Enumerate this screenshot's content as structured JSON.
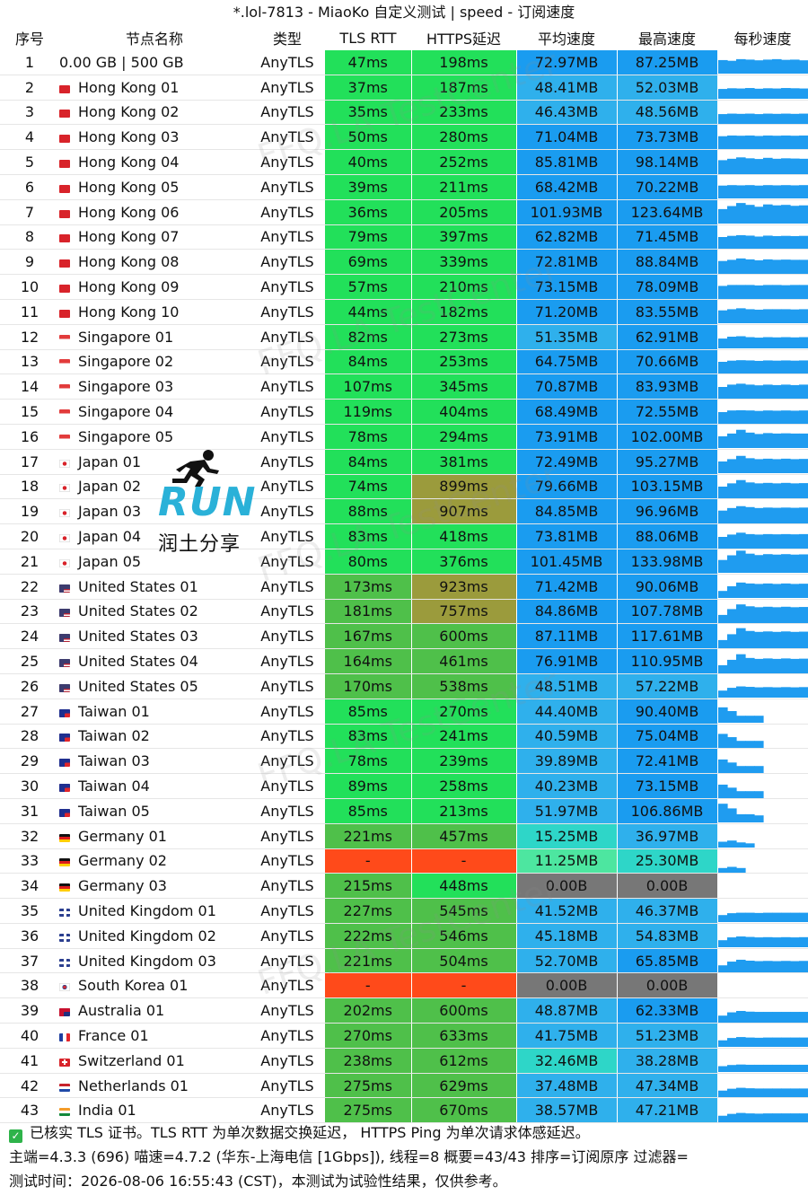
{
  "window": {
    "title": "*.lol-7813 - MiaoKo 自定义测试 | speed - 订阅速度"
  },
  "columns": [
    "序号",
    "节点名称",
    "类型",
    "TLS RTT",
    "HTTPS延迟",
    "平均速度",
    "最高速度",
    "每秒速度"
  ],
  "colors": {
    "green_bright": "#22e05a",
    "green_mid": "#4fc04a",
    "olive_warn": "#9b9b3c",
    "red_fail": "#ff4a1a",
    "blue_strong": "#1a9cf0",
    "blue_light": "#2fb0ec",
    "teal": "#2ed6c8",
    "green_light": "#4de6a0",
    "gray_zero": "#777777",
    "spark_fill": "#1f9cf0"
  },
  "rows": [
    {
      "index": "1",
      "flag": "none",
      "name": "0.00 GB | 500 GB",
      "type": "AnyTLS",
      "rtt": "47ms",
      "https": "198ms",
      "avg": "72.97MB",
      "max": "87.25MB",
      "spark": [
        0.58,
        0.55,
        0.62,
        0.6,
        0.57,
        0.6,
        0.62,
        0.59,
        0.6,
        0.57
      ]
    },
    {
      "index": "2",
      "flag": "hk",
      "name": "Hong Kong 01",
      "type": "AnyTLS",
      "rtt": "37ms",
      "https": "187ms",
      "avg": "48.41MB",
      "max": "52.03MB",
      "spark": [
        0.42,
        0.45,
        0.44,
        0.46,
        0.43,
        0.45,
        0.44,
        0.46,
        0.45,
        0.44
      ]
    },
    {
      "index": "3",
      "flag": "hk",
      "name": "Hong Kong 02",
      "type": "AnyTLS",
      "rtt": "35ms",
      "https": "233ms",
      "avg": "46.43MB",
      "max": "48.56MB",
      "spark": [
        0.42,
        0.44,
        0.43,
        0.44,
        0.42,
        0.44,
        0.43,
        0.44,
        0.43,
        0.44
      ]
    },
    {
      "index": "4",
      "flag": "hk",
      "name": "Hong Kong 03",
      "type": "AnyTLS",
      "rtt": "50ms",
      "https": "280ms",
      "avg": "71.04MB",
      "max": "73.73MB",
      "spark": [
        0.55,
        0.58,
        0.57,
        0.58,
        0.56,
        0.58,
        0.57,
        0.58,
        0.57,
        0.58
      ]
    },
    {
      "index": "5",
      "flag": "hk",
      "name": "Hong Kong 04",
      "type": "AnyTLS",
      "rtt": "40ms",
      "https": "252ms",
      "avg": "85.81MB",
      "max": "98.14MB",
      "spark": [
        0.6,
        0.66,
        0.72,
        0.68,
        0.65,
        0.7,
        0.66,
        0.68,
        0.67,
        0.66
      ]
    },
    {
      "index": "6",
      "flag": "hk",
      "name": "Hong Kong 05",
      "type": "AnyTLS",
      "rtt": "39ms",
      "https": "211ms",
      "avg": "68.42MB",
      "max": "70.22MB",
      "spark": [
        0.55,
        0.57,
        0.56,
        0.57,
        0.55,
        0.57,
        0.56,
        0.57,
        0.56,
        0.57
      ]
    },
    {
      "index": "7",
      "flag": "hk",
      "name": "Hong Kong 06",
      "type": "AnyTLS",
      "rtt": "36ms",
      "https": "205ms",
      "avg": "101.93MB",
      "max": "123.64MB",
      "spark": [
        0.62,
        0.75,
        0.88,
        0.8,
        0.72,
        0.82,
        0.78,
        0.8,
        0.76,
        0.78
      ]
    },
    {
      "index": "8",
      "flag": "hk",
      "name": "Hong Kong 07",
      "type": "AnyTLS",
      "rtt": "79ms",
      "https": "397ms",
      "avg": "62.82MB",
      "max": "71.45MB",
      "spark": [
        0.5,
        0.55,
        0.58,
        0.56,
        0.52,
        0.56,
        0.54,
        0.55,
        0.54,
        0.55
      ]
    },
    {
      "index": "9",
      "flag": "hk",
      "name": "Hong Kong 08",
      "type": "AnyTLS",
      "rtt": "69ms",
      "https": "339ms",
      "avg": "72.81MB",
      "max": "88.84MB",
      "spark": [
        0.55,
        0.6,
        0.66,
        0.62,
        0.58,
        0.62,
        0.6,
        0.61,
        0.6,
        0.6
      ]
    },
    {
      "index": "10",
      "flag": "hk",
      "name": "Hong Kong 09",
      "type": "AnyTLS",
      "rtt": "57ms",
      "https": "210ms",
      "avg": "73.15MB",
      "max": "78.09MB",
      "spark": [
        0.56,
        0.6,
        0.6,
        0.6,
        0.58,
        0.6,
        0.6,
        0.59,
        0.6,
        0.6
      ]
    },
    {
      "index": "11",
      "flag": "hk",
      "name": "Hong Kong 10",
      "type": "AnyTLS",
      "rtt": "44ms",
      "https": "182ms",
      "avg": "71.20MB",
      "max": "83.55MB",
      "spark": [
        0.55,
        0.6,
        0.64,
        0.6,
        0.58,
        0.6,
        0.6,
        0.6,
        0.59,
        0.6
      ]
    },
    {
      "index": "12",
      "flag": "sg",
      "name": "Singapore 01",
      "type": "AnyTLS",
      "rtt": "82ms",
      "https": "273ms",
      "avg": "51.35MB",
      "max": "62.91MB",
      "spark": [
        0.42,
        0.5,
        0.52,
        0.48,
        0.46,
        0.48,
        0.47,
        0.48,
        0.47,
        0.48
      ]
    },
    {
      "index": "13",
      "flag": "sg",
      "name": "Singapore 02",
      "type": "AnyTLS",
      "rtt": "84ms",
      "https": "253ms",
      "avg": "64.75MB",
      "max": "70.66MB",
      "spark": [
        0.5,
        0.55,
        0.57,
        0.56,
        0.54,
        0.56,
        0.55,
        0.56,
        0.55,
        0.56
      ]
    },
    {
      "index": "14",
      "flag": "sg",
      "name": "Singapore 03",
      "type": "AnyTLS",
      "rtt": "107ms",
      "https": "345ms",
      "avg": "70.87MB",
      "max": "83.93MB",
      "spark": [
        0.5,
        0.6,
        0.64,
        0.6,
        0.57,
        0.6,
        0.58,
        0.6,
        0.58,
        0.6
      ]
    },
    {
      "index": "15",
      "flag": "sg",
      "name": "Singapore 04",
      "type": "AnyTLS",
      "rtt": "119ms",
      "https": "404ms",
      "avg": "68.49MB",
      "max": "72.55MB",
      "spark": [
        0.5,
        0.57,
        0.58,
        0.57,
        0.55,
        0.57,
        0.56,
        0.57,
        0.56,
        0.57
      ]
    },
    {
      "index": "16",
      "flag": "sg",
      "name": "Singapore 05",
      "type": "AnyTLS",
      "rtt": "78ms",
      "https": "294ms",
      "avg": "73.91MB",
      "max": "102.00MB",
      "spark": [
        0.5,
        0.62,
        0.78,
        0.66,
        0.6,
        0.64,
        0.62,
        0.63,
        0.62,
        0.62
      ]
    },
    {
      "index": "17",
      "flag": "jp",
      "name": "Japan 01",
      "type": "AnyTLS",
      "rtt": "84ms",
      "https": "381ms",
      "avg": "72.49MB",
      "max": "95.27MB",
      "spark": [
        0.5,
        0.6,
        0.74,
        0.64,
        0.6,
        0.62,
        0.6,
        0.62,
        0.6,
        0.61
      ]
    },
    {
      "index": "18",
      "flag": "jp",
      "name": "Japan 02",
      "type": "AnyTLS",
      "rtt": "74ms",
      "https": "899ms",
      "avg": "79.66MB",
      "max": "103.15MB",
      "spark": [
        0.5,
        0.64,
        0.78,
        0.68,
        0.64,
        0.66,
        0.64,
        0.66,
        0.64,
        0.65
      ]
    },
    {
      "index": "19",
      "flag": "jp",
      "name": "Japan 03",
      "type": "AnyTLS",
      "rtt": "88ms",
      "https": "907ms",
      "avg": "84.85MB",
      "max": "96.96MB",
      "spark": [
        0.55,
        0.66,
        0.74,
        0.7,
        0.66,
        0.68,
        0.67,
        0.68,
        0.67,
        0.68
      ]
    },
    {
      "index": "20",
      "flag": "jp",
      "name": "Japan 04",
      "type": "AnyTLS",
      "rtt": "83ms",
      "https": "418ms",
      "avg": "73.81MB",
      "max": "88.06MB",
      "spark": [
        0.5,
        0.6,
        0.68,
        0.62,
        0.6,
        0.62,
        0.61,
        0.62,
        0.61,
        0.62
      ]
    },
    {
      "index": "21",
      "flag": "jp",
      "name": "Japan 05",
      "type": "AnyTLS",
      "rtt": "80ms",
      "https": "376ms",
      "avg": "101.45MB",
      "max": "133.98MB",
      "spark": [
        0.55,
        0.75,
        0.95,
        0.82,
        0.76,
        0.8,
        0.78,
        0.8,
        0.78,
        0.79
      ]
    },
    {
      "index": "22",
      "flag": "us",
      "name": "United States 01",
      "type": "AnyTLS",
      "rtt": "173ms",
      "https": "923ms",
      "avg": "71.42MB",
      "max": "90.06MB",
      "spark": [
        0.3,
        0.5,
        0.66,
        0.62,
        0.6,
        0.62,
        0.6,
        0.62,
        0.6,
        0.61
      ]
    },
    {
      "index": "23",
      "flag": "us",
      "name": "United States 02",
      "type": "AnyTLS",
      "rtt": "181ms",
      "https": "757ms",
      "avg": "84.86MB",
      "max": "107.78MB",
      "spark": [
        0.35,
        0.6,
        0.8,
        0.72,
        0.68,
        0.7,
        0.68,
        0.7,
        0.68,
        0.69
      ]
    },
    {
      "index": "24",
      "flag": "us",
      "name": "United States 03",
      "type": "AnyTLS",
      "rtt": "167ms",
      "https": "600ms",
      "avg": "87.11MB",
      "max": "117.61MB",
      "spark": [
        0.35,
        0.6,
        0.86,
        0.74,
        0.7,
        0.72,
        0.7,
        0.72,
        0.7,
        0.71
      ]
    },
    {
      "index": "25",
      "flag": "us",
      "name": "United States 04",
      "type": "AnyTLS",
      "rtt": "164ms",
      "https": "461ms",
      "avg": "76.91MB",
      "max": "110.95MB",
      "spark": [
        0.35,
        0.58,
        0.82,
        0.66,
        0.62,
        0.64,
        0.62,
        0.64,
        0.62,
        0.63
      ]
    },
    {
      "index": "26",
      "flag": "us",
      "name": "United States 05",
      "type": "AnyTLS",
      "rtt": "170ms",
      "https": "538ms",
      "avg": "48.51MB",
      "max": "57.22MB",
      "spark": [
        0.3,
        0.42,
        0.48,
        0.46,
        0.44,
        0.45,
        0.44,
        0.45,
        0.44,
        0.45
      ]
    },
    {
      "index": "27",
      "flag": "tw",
      "name": "Taiwan 01",
      "type": "AnyTLS",
      "rtt": "85ms",
      "https": "270ms",
      "avg": "44.40MB",
      "max": "90.40MB",
      "spark": [
        0.66,
        0.5,
        0.3,
        0.3,
        0.3,
        0.0,
        0.0,
        0.0,
        0.0,
        0.0
      ]
    },
    {
      "index": "28",
      "flag": "tw",
      "name": "Taiwan 02",
      "type": "AnyTLS",
      "rtt": "83ms",
      "https": "241ms",
      "avg": "40.59MB",
      "max": "75.04MB",
      "spark": [
        0.6,
        0.46,
        0.3,
        0.3,
        0.3,
        0.0,
        0.0,
        0.0,
        0.0,
        0.0
      ]
    },
    {
      "index": "29",
      "flag": "tw",
      "name": "Taiwan 03",
      "type": "AnyTLS",
      "rtt": "78ms",
      "https": "239ms",
      "avg": "39.89MB",
      "max": "72.41MB",
      "spark": [
        0.58,
        0.45,
        0.3,
        0.3,
        0.3,
        0.0,
        0.0,
        0.0,
        0.0,
        0.0
      ]
    },
    {
      "index": "30",
      "flag": "tw",
      "name": "Taiwan 04",
      "type": "AnyTLS",
      "rtt": "89ms",
      "https": "258ms",
      "avg": "40.23MB",
      "max": "73.15MB",
      "spark": [
        0.58,
        0.45,
        0.3,
        0.3,
        0.3,
        0.0,
        0.0,
        0.0,
        0.0,
        0.0
      ]
    },
    {
      "index": "31",
      "flag": "tw",
      "name": "Taiwan 05",
      "type": "AnyTLS",
      "rtt": "85ms",
      "https": "213ms",
      "avg": "51.97MB",
      "max": "106.86MB",
      "spark": [
        0.8,
        0.6,
        0.35,
        0.35,
        0.3,
        0.0,
        0.0,
        0.0,
        0.0,
        0.0
      ]
    },
    {
      "index": "32",
      "flag": "de",
      "name": "Germany 01",
      "type": "AnyTLS",
      "rtt": "221ms",
      "https": "457ms",
      "avg": "15.25MB",
      "max": "36.97MB",
      "spark": [
        0.25,
        0.3,
        0.22,
        0.18,
        0.0,
        0.0,
        0.0,
        0.0,
        0.0,
        0.0
      ]
    },
    {
      "index": "33",
      "flag": "de",
      "name": "Germany 02",
      "type": "AnyTLS",
      "rtt": "-",
      "https": "-",
      "avg": "11.25MB",
      "max": "25.30MB",
      "spark": [
        0.2,
        0.25,
        0.2,
        0.0,
        0.0,
        0.0,
        0.0,
        0.0,
        0.0,
        0.0
      ]
    },
    {
      "index": "34",
      "flag": "de",
      "name": "Germany 03",
      "type": "AnyTLS",
      "rtt": "215ms",
      "https": "448ms",
      "avg": "0.00B",
      "max": "0.00B",
      "spark": [
        0,
        0,
        0,
        0,
        0,
        0,
        0,
        0,
        0,
        0
      ]
    },
    {
      "index": "35",
      "flag": "gb",
      "name": "United Kingdom 01",
      "type": "AnyTLS",
      "rtt": "227ms",
      "https": "545ms",
      "avg": "41.52MB",
      "max": "46.37MB",
      "spark": [
        0.3,
        0.38,
        0.4,
        0.4,
        0.39,
        0.4,
        0.4,
        0.4,
        0.4,
        0.4
      ]
    },
    {
      "index": "36",
      "flag": "gb",
      "name": "United Kingdom 02",
      "type": "AnyTLS",
      "rtt": "222ms",
      "https": "546ms",
      "avg": "45.18MB",
      "max": "54.83MB",
      "spark": [
        0.3,
        0.42,
        0.46,
        0.44,
        0.42,
        0.43,
        0.42,
        0.43,
        0.42,
        0.43
      ]
    },
    {
      "index": "37",
      "flag": "gb",
      "name": "United Kingdom 03",
      "type": "AnyTLS",
      "rtt": "221ms",
      "https": "504ms",
      "avg": "52.70MB",
      "max": "65.85MB",
      "spark": [
        0.3,
        0.46,
        0.54,
        0.5,
        0.48,
        0.49,
        0.48,
        0.49,
        0.48,
        0.49
      ]
    },
    {
      "index": "38",
      "flag": "kr",
      "name": "South Korea 01",
      "type": "AnyTLS",
      "rtt": "-",
      "https": "-",
      "avg": "0.00B",
      "max": "0.00B",
      "spark": [
        0,
        0,
        0,
        0,
        0,
        0,
        0,
        0,
        0,
        0
      ]
    },
    {
      "index": "39",
      "flag": "au",
      "name": "Australia 01",
      "type": "AnyTLS",
      "rtt": "202ms",
      "https": "600ms",
      "avg": "48.87MB",
      "max": "62.33MB",
      "spark": [
        0.3,
        0.44,
        0.5,
        0.47,
        0.46,
        0.46,
        0.46,
        0.46,
        0.46,
        0.46
      ]
    },
    {
      "index": "40",
      "flag": "fr",
      "name": "France 01",
      "type": "AnyTLS",
      "rtt": "270ms",
      "https": "633ms",
      "avg": "41.75MB",
      "max": "51.23MB",
      "spark": [
        0.28,
        0.38,
        0.42,
        0.4,
        0.39,
        0.4,
        0.4,
        0.4,
        0.4,
        0.4
      ]
    },
    {
      "index": "41",
      "flag": "ch",
      "name": "Switzerland 01",
      "type": "AnyTLS",
      "rtt": "238ms",
      "https": "612ms",
      "avg": "32.46MB",
      "max": "38.28MB",
      "spark": [
        0.25,
        0.3,
        0.32,
        0.31,
        0.31,
        0.31,
        0.31,
        0.31,
        0.31,
        0.31
      ]
    },
    {
      "index": "42",
      "flag": "nl",
      "name": "Netherlands 01",
      "type": "AnyTLS",
      "rtt": "275ms",
      "https": "629ms",
      "avg": "37.48MB",
      "max": "47.34MB",
      "spark": [
        0.28,
        0.36,
        0.4,
        0.38,
        0.37,
        0.37,
        0.37,
        0.37,
        0.37,
        0.37
      ]
    },
    {
      "index": "43",
      "flag": "in",
      "name": "India 01",
      "type": "AnyTLS",
      "rtt": "275ms",
      "https": "670ms",
      "avg": "38.57MB",
      "max": "47.21MB",
      "spark": [
        0.28,
        0.36,
        0.4,
        0.38,
        0.37,
        0.38,
        0.38,
        0.38,
        0.38,
        0.38
      ]
    }
  ],
  "footer": {
    "line1": "已核实 TLS 证书。TLS RTT 为单次数据交换延迟， HTTPS Ping 为单次请求体感延迟。",
    "line2": "主端=4.3.3 (696) 喵速=4.7.2 (华东-上海电信 [1Gbps]), 线程=8 概要=43/43 排序=订阅原序 过滤器=",
    "line3": "测试时间：2026-08-06 16:55:43 (CST)，本测试为试验性结果，仅供参考。"
  },
  "logo": {
    "text_run": "RUN",
    "text_cn": "润土分享"
  },
  "watermark": {
    "text": "FFQ.LA TestCenter"
  }
}
